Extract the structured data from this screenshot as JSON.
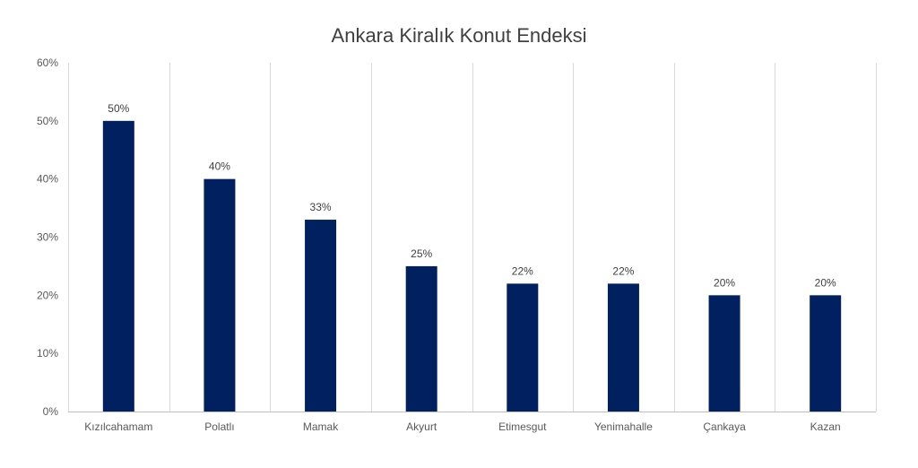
{
  "chart_data": {
    "type": "bar",
    "title": "Ankara Kiralık Konut Endeksi",
    "categories": [
      "Kızılcahamam",
      "Polatlı",
      "Mamak",
      "Akyurt",
      "Etimesgut",
      "Yenimahalle",
      "Çankaya",
      "Kazan"
    ],
    "values": [
      50,
      40,
      33,
      25,
      22,
      22,
      20,
      20
    ],
    "data_labels": [
      "50%",
      "40%",
      "33%",
      "25%",
      "22%",
      "22%",
      "20%",
      "20%"
    ],
    "y_ticks": [
      "0%",
      "10%",
      "20%",
      "30%",
      "40%",
      "50%",
      "60%"
    ],
    "ylim": [
      0,
      60
    ],
    "xlabel": "",
    "ylabel": "",
    "grid": "vertical category separators",
    "legend": "none",
    "bar_color": "#002060"
  }
}
